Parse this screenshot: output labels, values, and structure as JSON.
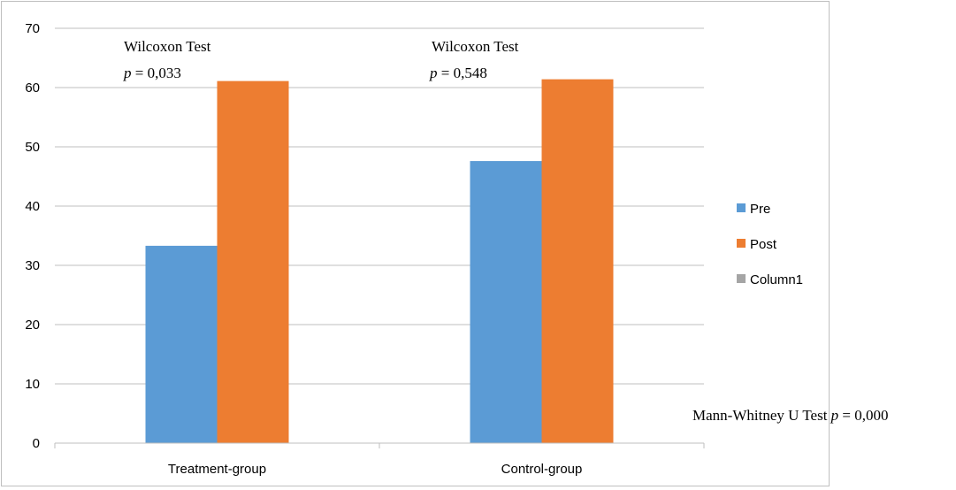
{
  "chart_data": {
    "type": "bar",
    "categories": [
      "Treatment-group",
      "Control-group"
    ],
    "series": [
      {
        "name": "Pre",
        "values": [
          33.3,
          47.6
        ],
        "color": "#5b9bd5"
      },
      {
        "name": "Post",
        "values": [
          61.1,
          61.4
        ],
        "color": "#ed7d31"
      },
      {
        "name": "Column1",
        "values": [
          null,
          null
        ],
        "color": "#a5a5a5"
      }
    ],
    "ylim": [
      0,
      70
    ],
    "yticks": [
      "0",
      "10",
      "20",
      "30",
      "40",
      "50",
      "60",
      "70"
    ],
    "grid": true,
    "legend_position": "right",
    "annotations": [
      {
        "title": "Wilcoxon Test",
        "p_symbol": "p",
        "p_text": " = 0,033"
      },
      {
        "title": "Wilcoxon Test",
        "p_symbol": "p",
        "p_text": " = 0,548"
      }
    ],
    "footer_annotation": {
      "title": "Mann-Whitney U Test  ",
      "p_symbol": "p",
      "p_text": " = 0,000"
    }
  }
}
